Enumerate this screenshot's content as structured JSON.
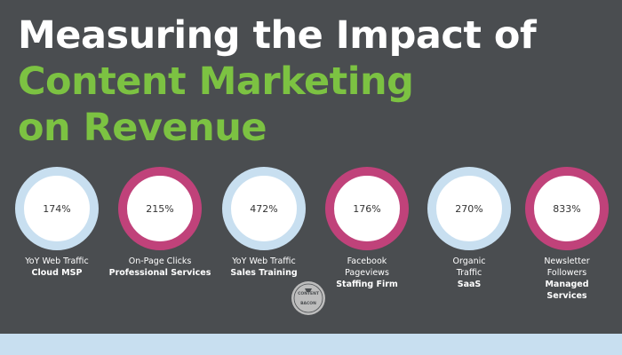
{
  "headline": {
    "line1": "Measuring the Impact of",
    "line2": "Content Marketing",
    "line3": "on Revenue"
  },
  "colors": {
    "background": "#4a4d50",
    "accent_green": "#7cc242",
    "ring_blue": "#c8dff0",
    "ring_pink": "#c0427a"
  },
  "stats": [
    {
      "value": "174%",
      "line1": "YoY Web Traffic",
      "line2": "",
      "bold": "Cloud MSP",
      "bold2": "",
      "ring": "blue"
    },
    {
      "value": "215%",
      "line1": "On-Page Clicks",
      "line2": "",
      "bold": "Professional Services",
      "bold2": "",
      "ring": "pink"
    },
    {
      "value": "472%",
      "line1": "YoY Web Traffic",
      "line2": "",
      "bold": "Sales Training",
      "bold2": "",
      "ring": "blue"
    },
    {
      "value": "176%",
      "line1": "Facebook",
      "line2": "Pageviews",
      "bold": "Staffing Firm",
      "bold2": "",
      "ring": "pink"
    },
    {
      "value": "270%",
      "line1": "Organic",
      "line2": "Traffic",
      "bold": "SaaS",
      "bold2": "",
      "ring": "blue"
    },
    {
      "value": "833%",
      "line1": "Newsletter",
      "line2": "Followers",
      "bold": "Managed",
      "bold2": "Services",
      "ring": "pink"
    }
  ],
  "logo": {
    "icon": "content-bacon-seal-icon",
    "text_top": "CONTENT",
    "text_bottom": "BACON"
  }
}
